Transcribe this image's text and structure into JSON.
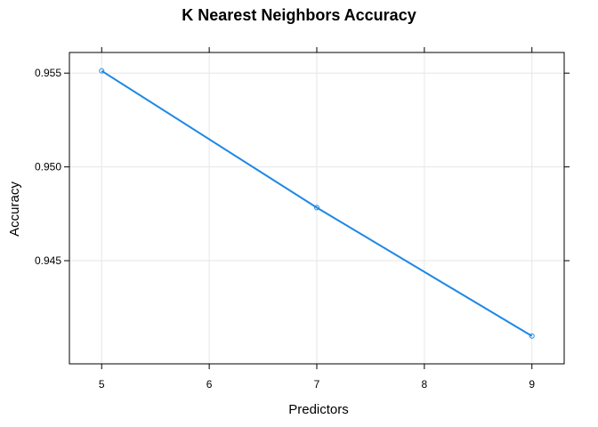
{
  "chart_data": {
    "type": "line",
    "title": "K Nearest Neighbors Accuracy",
    "xlabel": "Predictors",
    "ylabel": "Accuracy",
    "x": [
      5,
      7,
      9
    ],
    "series": [
      {
        "values": [
          0.95512,
          0.94783,
          0.94098
        ],
        "color": "#1e88e5"
      }
    ],
    "xlim": [
      4.7,
      9.3
    ],
    "ylim": [
      0.9395,
      0.9561
    ],
    "xticks": [
      5,
      6,
      7,
      8,
      9
    ],
    "yticks": [
      0.945,
      0.95,
      0.955
    ],
    "xtick_labels": [
      "5",
      "6",
      "7",
      "8",
      "9"
    ],
    "ytick_labels": [
      "0.945",
      "0.950",
      "0.955"
    ],
    "grid": true,
    "marker": "open-circle"
  }
}
